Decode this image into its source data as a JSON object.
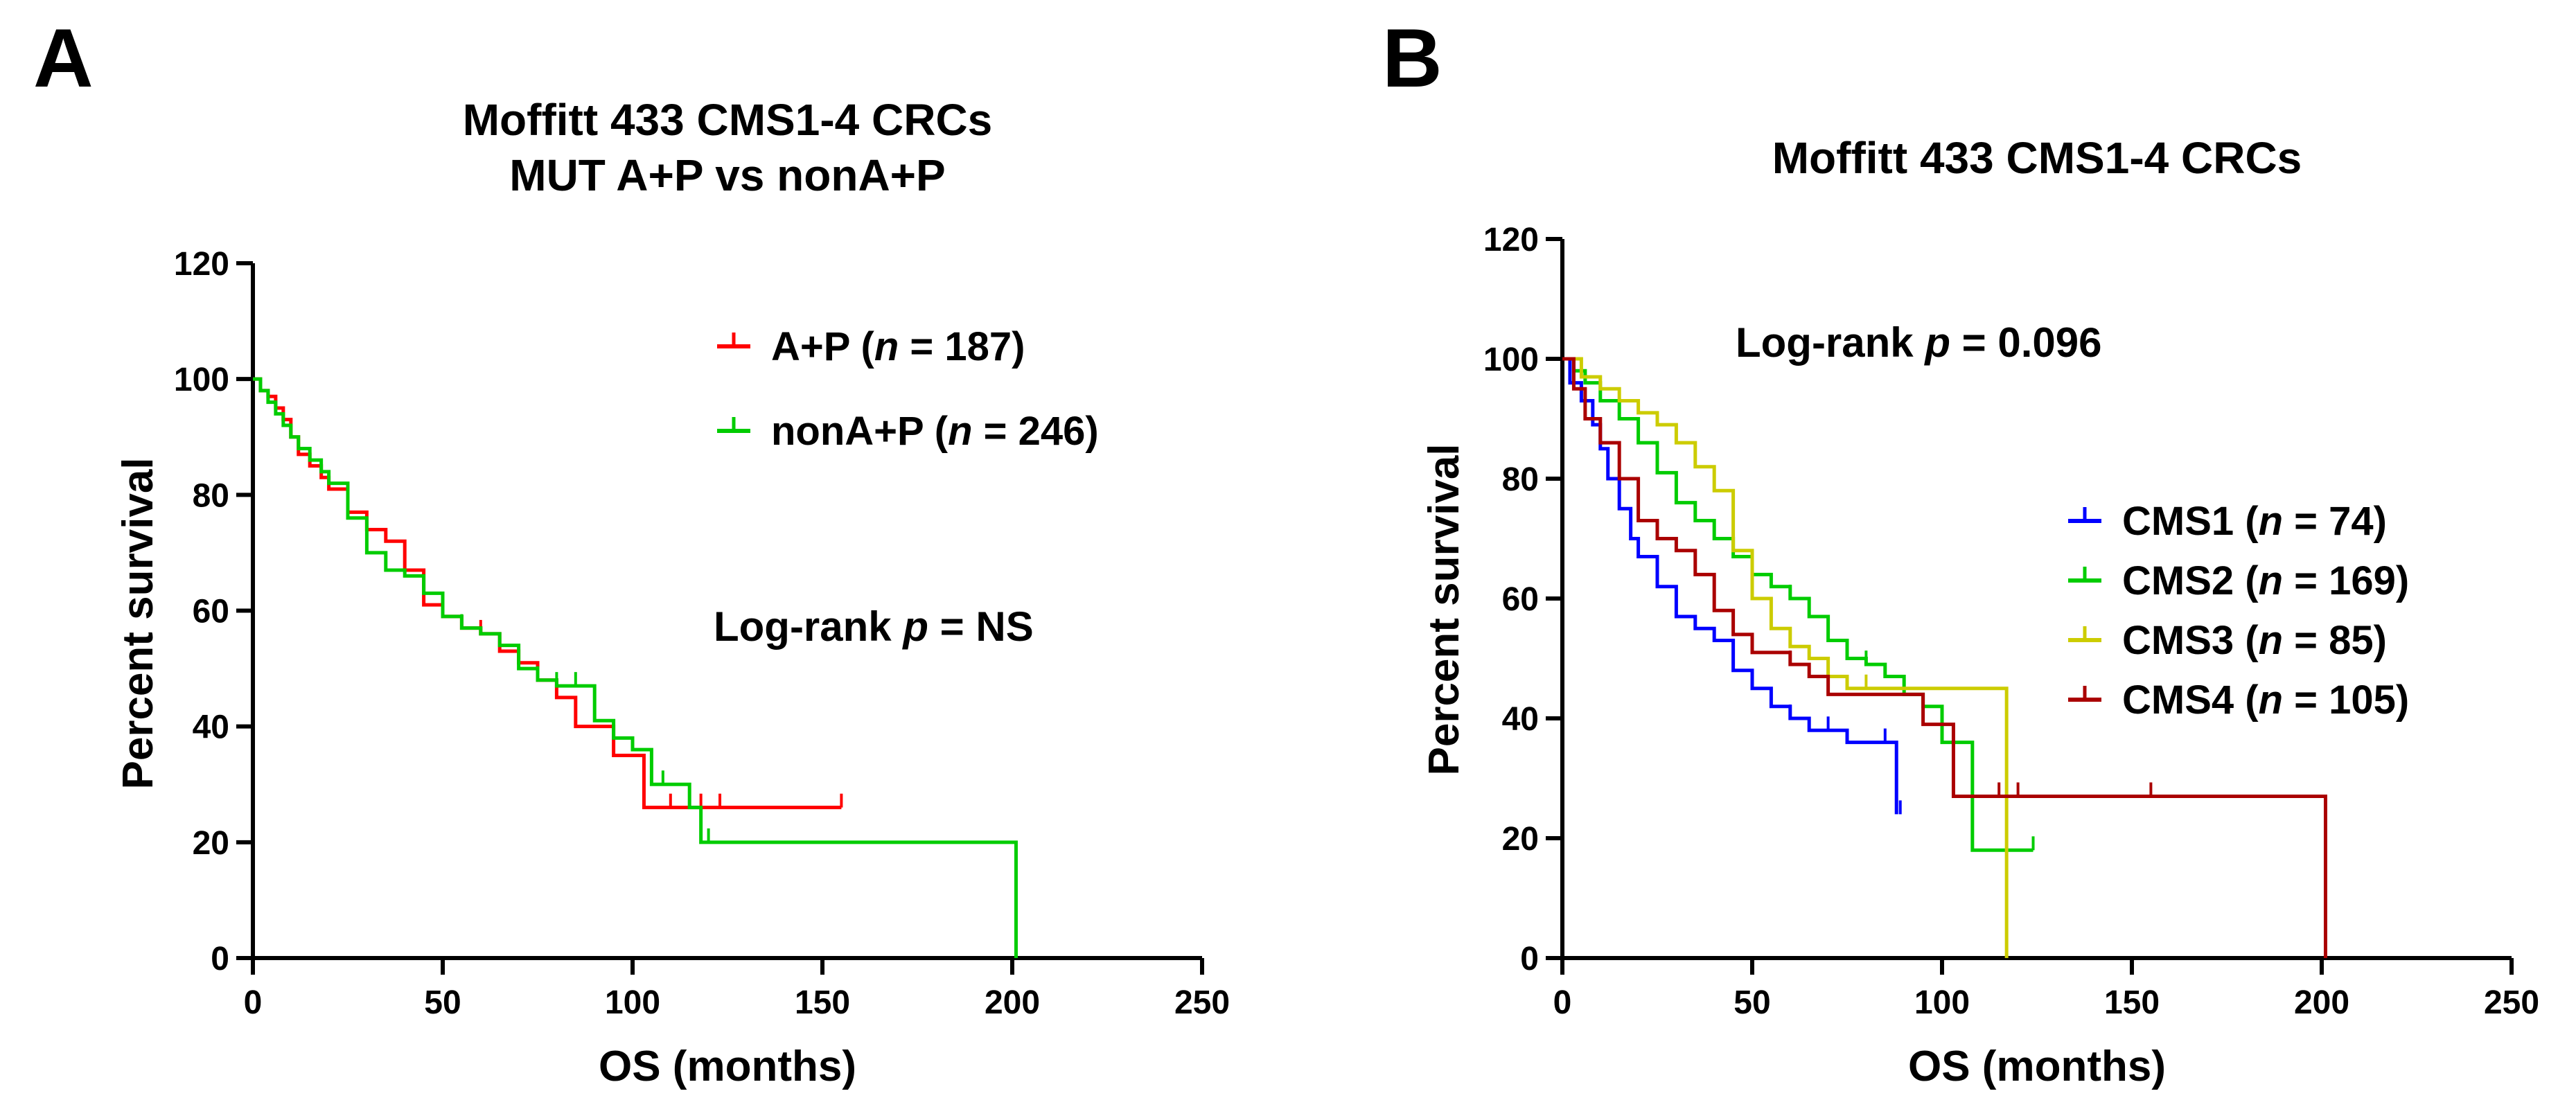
{
  "chart_data": [
    {
      "panel": "A",
      "type": "line",
      "title_lines": [
        "Moffitt 433 CMS1-4 CRCs",
        "MUT A+P vs nonA+P"
      ],
      "xlabel": "OS (months)",
      "ylabel": "Percent survival",
      "xlim": [
        0,
        250
      ],
      "ylim": [
        0,
        120
      ],
      "xticks": [
        0,
        50,
        100,
        150,
        200,
        250
      ],
      "yticks": [
        0,
        20,
        40,
        60,
        80,
        100,
        120
      ],
      "annotation": {
        "prefix": "Log-rank ",
        "italic": "p",
        "suffix": " = NS"
      },
      "legend_position": "top-right",
      "series": [
        {
          "name_prefix": "A+P (",
          "name_italic": "n",
          "name_suffix": " = 187)",
          "color": "#ff0000",
          "x": [
            0,
            2,
            4,
            6,
            8,
            10,
            12,
            15,
            18,
            20,
            25,
            30,
            35,
            40,
            45,
            50,
            55,
            60,
            65,
            70,
            75,
            80,
            85,
            90,
            95,
            100,
            103,
            110,
            120,
            130,
            140,
            155
          ],
          "y": [
            100,
            98,
            97,
            95,
            93,
            90,
            87,
            85,
            83,
            81,
            77,
            74,
            72,
            67,
            61,
            59,
            57,
            56,
            53,
            51,
            48,
            45,
            40,
            40,
            35,
            35,
            26,
            26,
            26,
            26,
            26,
            26
          ],
          "censor_x": [
            60,
            70,
            80,
            110,
            118,
            123,
            155
          ]
        },
        {
          "name_prefix": "nonA+P (",
          "name_italic": "n",
          "name_suffix": " = 246)",
          "color": "#00cc00",
          "x": [
            0,
            2,
            4,
            6,
            8,
            10,
            12,
            15,
            18,
            20,
            25,
            30,
            35,
            40,
            45,
            50,
            55,
            60,
            65,
            70,
            75,
            80,
            85,
            90,
            95,
            100,
            105,
            110,
            115,
            118,
            150,
            180,
            201,
            201
          ],
          "y": [
            100,
            98,
            96,
            94,
            92,
            90,
            88,
            86,
            84,
            82,
            76,
            70,
            67,
            66,
            63,
            59,
            57,
            56,
            54,
            50,
            48,
            47,
            47,
            41,
            38,
            36,
            30,
            30,
            26,
            20,
            20,
            20,
            20,
            0
          ],
          "censor_x": [
            55,
            75,
            80,
            85,
            90,
            105,
            108,
            120
          ]
        }
      ]
    },
    {
      "panel": "B",
      "type": "line",
      "title_lines": [
        "Moffitt 433 CMS1-4 CRCs"
      ],
      "xlabel": "OS (months)",
      "ylabel": "Percent survival",
      "xlim": [
        0,
        250
      ],
      "ylim": [
        0,
        120
      ],
      "xticks": [
        0,
        50,
        100,
        150,
        200,
        250
      ],
      "yticks": [
        0,
        20,
        40,
        60,
        80,
        100,
        120
      ],
      "annotation": {
        "prefix": "Log-rank ",
        "italic": "p",
        "suffix": " = 0.096"
      },
      "legend_position": "right",
      "series": [
        {
          "name_prefix": "CMS1 (",
          "name_italic": "n",
          "name_suffix": " = 74)",
          "color": "#0000ff",
          "x": [
            0,
            2,
            5,
            8,
            10,
            12,
            15,
            18,
            20,
            25,
            30,
            35,
            40,
            45,
            50,
            55,
            60,
            65,
            75,
            80,
            85,
            88,
            88
          ],
          "y": [
            100,
            96,
            93,
            89,
            85,
            80,
            75,
            70,
            67,
            62,
            57,
            55,
            53,
            48,
            45,
            42,
            40,
            38,
            36,
            36,
            36,
            36,
            24
          ],
          "censor_x": [
            50,
            60,
            70,
            85,
            89
          ]
        },
        {
          "name_prefix": "CMS2 (",
          "name_italic": "n",
          "name_suffix": " = 169)",
          "color": "#00cc00",
          "x": [
            0,
            3,
            6,
            10,
            15,
            20,
            25,
            30,
            35,
            40,
            45,
            50,
            55,
            60,
            65,
            70,
            75,
            80,
            85,
            90,
            95,
            100,
            105,
            108,
            108,
            124
          ],
          "y": [
            100,
            98,
            96,
            93,
            90,
            86,
            81,
            76,
            73,
            70,
            67,
            64,
            62,
            60,
            57,
            53,
            50,
            49,
            47,
            44,
            42,
            36,
            36,
            36,
            18,
            18
          ],
          "censor_x": [
            60,
            70,
            80,
            90,
            100,
            124
          ]
        },
        {
          "name_prefix": "CMS3 (",
          "name_italic": "n",
          "name_suffix": " = 85)",
          "color": "#cccc00",
          "x": [
            0,
            5,
            10,
            15,
            20,
            25,
            30,
            35,
            40,
            45,
            50,
            55,
            60,
            65,
            70,
            75,
            80,
            117,
            117
          ],
          "y": [
            100,
            97,
            95,
            93,
            91,
            89,
            86,
            82,
            78,
            68,
            60,
            55,
            52,
            50,
            47,
            45,
            45,
            45,
            0
          ],
          "censor_x": [
            60,
            70,
            80
          ]
        },
        {
          "name_prefix": "CMS4 (",
          "name_italic": "n",
          "name_suffix": " = 105)",
          "color": "#aa0000",
          "x": [
            0,
            3,
            6,
            10,
            15,
            20,
            25,
            30,
            35,
            40,
            45,
            50,
            55,
            60,
            65,
            70,
            75,
            80,
            90,
            95,
            100,
            103,
            150,
            201,
            201
          ],
          "y": [
            100,
            95,
            90,
            86,
            80,
            73,
            70,
            68,
            64,
            58,
            54,
            51,
            51,
            49,
            47,
            44,
            44,
            44,
            44,
            39,
            39,
            27,
            27,
            27,
            0
          ],
          "censor_x": [
            60,
            70,
            115,
            120,
            155
          ]
        }
      ]
    }
  ]
}
